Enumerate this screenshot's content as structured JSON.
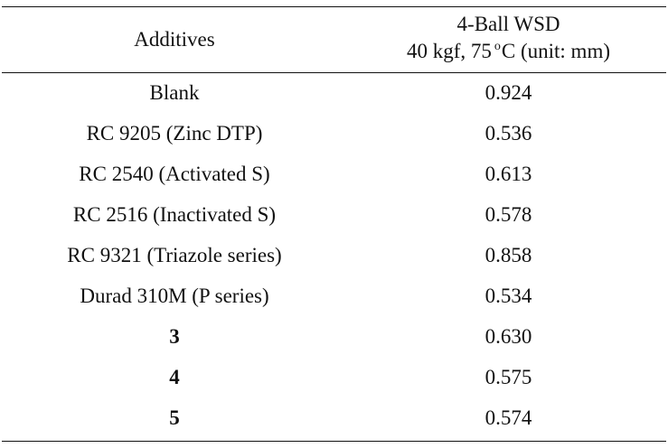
{
  "table": {
    "header": {
      "col1": "Additives",
      "col2_line1": "4-Ball WSD",
      "col2_line2_pre": "40 kgf, 75",
      "col2_line2_sup": "o",
      "col2_line2_post": "C (unit: mm)"
    },
    "rows": [
      {
        "additive": "Blank",
        "wsd": "0.924"
      },
      {
        "additive": "RC 9205 (Zinc DTP)",
        "wsd": "0.536"
      },
      {
        "additive": "RC 2540 (Activated S)",
        "wsd": "0.613"
      },
      {
        "additive": "RC 2516 (Inactivated S)",
        "wsd": "0.578"
      },
      {
        "additive": "RC 9321 (Triazole series)",
        "wsd": "0.858"
      },
      {
        "additive": "Durad 310M (P series)",
        "wsd": "0.534"
      },
      {
        "additive": "3",
        "wsd": "0.630"
      },
      {
        "additive": "4",
        "wsd": "0.575"
      },
      {
        "additive": "5",
        "wsd": "0.574"
      }
    ]
  }
}
